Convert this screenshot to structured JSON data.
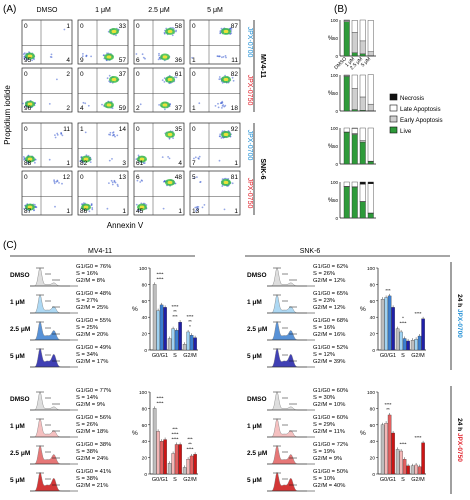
{
  "panel_labels": {
    "a": "(A)",
    "b": "(B)",
    "c": "(C)"
  },
  "flow": {
    "columns": [
      "DMSO",
      "1 μM",
      "2.5 μM",
      "5 μM"
    ],
    "y_axis_label": "Propidium iodide",
    "x_axis_label": "Annexin V",
    "groups": [
      {
        "name": "MV4-11",
        "rows": [
          {
            "drug": "JPX-0700",
            "drug_color": "#1f8fd6",
            "quads": [
              [
                0,
                1,
                95,
                4
              ],
              [
                0,
                33,
                9,
                57
              ],
              [
                0,
                58,
                6,
                36
              ],
              [
                0,
                87,
                1,
                11
              ]
            ]
          },
          {
            "drug": "JPX-0750",
            "drug_color": "#e0202a",
            "quads": [
              [
                0,
                2,
                96,
                2
              ],
              [
                0,
                37,
                4,
                59
              ],
              [
                0,
                61,
                2,
                37
              ],
              [
                0,
                82,
                1,
                18
              ]
            ]
          }
        ]
      },
      {
        "name": "SNK-6",
        "rows": [
          {
            "drug": "JPX-0700",
            "drug_color": "#1f8fd6",
            "quads": [
              [
                0,
                11,
                88,
                1
              ],
              [
                1,
                14,
                82,
                3
              ],
              [
                0,
                35,
                61,
                4
              ],
              [
                0,
                92,
                7,
                1
              ]
            ]
          },
          {
            "drug": "JPX-0750",
            "drug_color": "#e0202a",
            "quads": [
              [
                0,
                12,
                87,
                1
              ],
              [
                0,
                13,
                86,
                1
              ],
              [
                6,
                48,
                45,
                1
              ],
              [
                5,
                81,
                13,
                1
              ]
            ]
          }
        ]
      }
    ]
  },
  "apoptosis": {
    "ylabel": "%",
    "categories": [
      "DMSO",
      "1 μM",
      "2.5 μM",
      "5 μM"
    ],
    "legend": [
      {
        "label": "Necrosis",
        "color": "#111111"
      },
      {
        "label": "Late Apoptosis",
        "color": "#ffffff"
      },
      {
        "label": "Early Apoptosis",
        "color": "#cfcfcf"
      },
      {
        "label": "Live",
        "color": "#2e9a3a"
      }
    ],
    "charts": [
      {
        "live": [
          95,
          9,
          6,
          1
        ],
        "early": [
          4,
          57,
          36,
          11
        ],
        "late": [
          1,
          33,
          58,
          87
        ],
        "nec": [
          0,
          0,
          0,
          0
        ]
      },
      {
        "live": [
          96,
          4,
          2,
          1
        ],
        "early": [
          2,
          59,
          37,
          18
        ],
        "late": [
          2,
          37,
          61,
          82
        ],
        "nec": [
          0,
          0,
          0,
          0
        ]
      },
      {
        "live": [
          88,
          82,
          61,
          7
        ],
        "early": [
          1,
          3,
          4,
          1
        ],
        "late": [
          11,
          14,
          35,
          92
        ],
        "nec": [
          0,
          1,
          0,
          0
        ]
      },
      {
        "live": [
          87,
          86,
          45,
          13
        ],
        "early": [
          1,
          1,
          1,
          1
        ],
        "late": [
          12,
          13,
          48,
          81
        ],
        "nec": [
          0,
          0,
          6,
          5
        ]
      }
    ]
  },
  "cell_cycle": {
    "cell_lines": [
      "MV4-11",
      "SNK-6"
    ],
    "conditions": [
      "DMSO",
      "1 μM",
      "2.5 μM",
      "5 μM"
    ],
    "side_labels": [
      {
        "prefix": "24 h",
        "drug": "JPX-0700",
        "color": "#1f8fd6"
      },
      {
        "prefix": "24 h",
        "drug": "JPX-0750",
        "color": "#e0202a"
      }
    ],
    "ylabel": "%",
    "xcats": [
      "G0/G1",
      "S",
      "G2/M"
    ],
    "palettes": {
      "blue": [
        "#bdbdbd",
        "#9fd2f2",
        "#3b7fd1",
        "#1f1fa8"
      ],
      "red": [
        "#bdbdbd",
        "#f4b6b6",
        "#e26060",
        "#cc1414"
      ]
    },
    "panels": [
      {
        "line": "MV4-11",
        "palette": "blue",
        "texts": [
          [
            "G1/G0 = 76%",
            "S = 16%",
            "G2/M = 8%"
          ],
          [
            "G1/G0 = 48%",
            "S = 27%",
            "G2/M = 25%"
          ],
          [
            "G1/G0 = 55%",
            "S = 25%",
            "G2/M = 20%"
          ],
          [
            "G1/G0 = 49%",
            "S = 34%",
            "G2/M = 17%"
          ]
        ],
        "values": [
          [
            80,
            48,
            55,
            52
          ],
          [
            14,
            26,
            24,
            34
          ],
          [
            7,
            22,
            18,
            15
          ]
        ],
        "sig": [
          [
            "****",
            "****"
          ],
          [
            "***",
            "**",
            "****"
          ],
          [
            "*",
            "**",
            "****"
          ]
        ]
      },
      {
        "line": "SNK-6",
        "palette": "blue",
        "texts": [
          [
            "G1/G0 = 62%",
            "S = 26%",
            "G2/M = 12%"
          ],
          [
            "G1/G0 = 65%",
            "S = 23%",
            "G2/M = 12%"
          ],
          [
            "G1/G0 = 68%",
            "S = 16%",
            "G2/M = 16%"
          ],
          [
            "G1/G0 = 52%",
            "S = 12%",
            "G2/M = 39%"
          ]
        ],
        "values": [
          [
            62,
            64,
            66,
            52
          ],
          [
            26,
            22,
            14,
            11
          ],
          [
            12,
            13,
            17,
            38
          ]
        ],
        "sig": [
          [
            "***"
          ],
          [
            "****",
            "*"
          ],
          [
            "****"
          ]
        ]
      },
      {
        "line": "MV4-11",
        "palette": "red",
        "texts": [
          [
            "G1/G0 = 77%",
            "S = 14%",
            "G2/M = 9%"
          ],
          [
            "G1/G0 = 56%",
            "S = 26%",
            "G2/M = 18%"
          ],
          [
            "G1/G0 = 38%",
            "S = 38%",
            "G2/M = 24%"
          ],
          [
            "G1/G0 = 41%",
            "S = 38%",
            "G2/M = 21%"
          ]
        ],
        "values": [
          [
            80,
            52,
            40,
            42
          ],
          [
            13,
            25,
            36,
            36
          ],
          [
            8,
            18,
            22,
            24
          ]
        ],
        "sig": [
          [
            "****",
            "****"
          ],
          [
            "****",
            "****",
            "***"
          ],
          [
            "****",
            "**",
            "***"
          ]
        ]
      },
      {
        "line": "SNK-6",
        "palette": "red",
        "texts": [
          [
            "G1/G0 = 60%",
            "S = 30%",
            "G2/M = 10%"
          ],
          [
            "G1/G0 = 60%",
            "S = 29%",
            "G2/M = 11%"
          ],
          [
            "G1/G0 = 72%",
            "S = 19%",
            "G2/M = 9%"
          ],
          [
            "G1/G0 = 50%",
            "S = 10%",
            "G2/M = 40%"
          ]
        ],
        "values": [
          [
            60,
            62,
            72,
            50
          ],
          [
            30,
            28,
            18,
            10
          ],
          [
            10,
            11,
            9,
            38
          ]
        ],
        "sig": [
          [
            "**",
            "****"
          ],
          [
            "****"
          ],
          [
            "****"
          ]
        ]
      }
    ]
  }
}
